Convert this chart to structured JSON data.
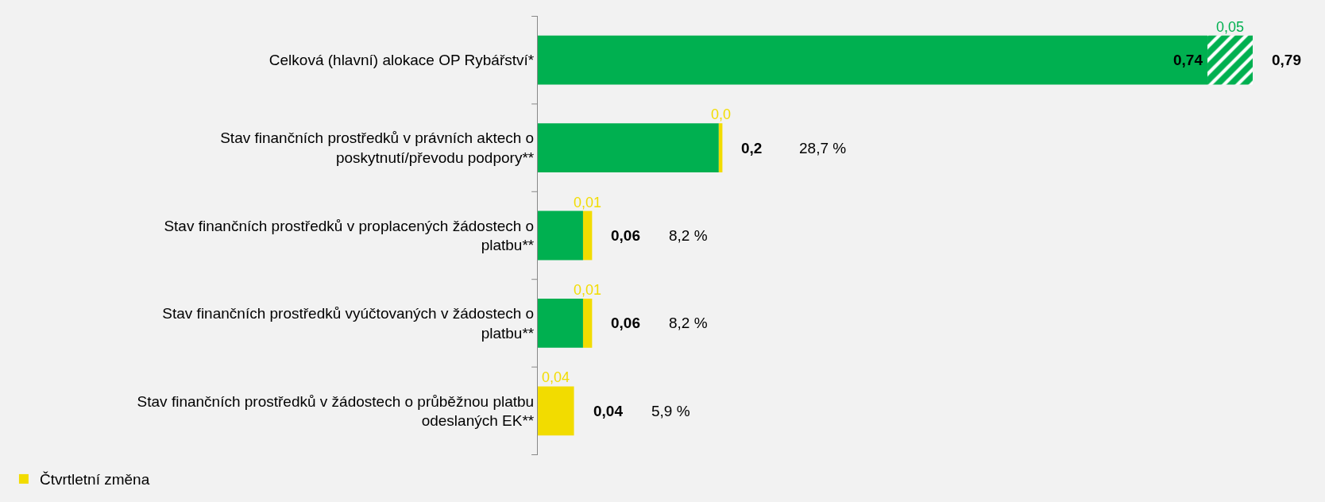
{
  "chart_data": {
    "type": "bar",
    "orientation": "horizontal",
    "stacked": true,
    "legend": "bottom left",
    "grid": false,
    "tick_labels": "y",
    "categories": [
      "Celková (hlavní) alokace OP Rybářství*",
      "Stav finančních prostředků v právních aktech o poskytnutí/převodu podpory**",
      "Stav finančních prostředků v proplacených žádostech o platbu**",
      "Stav finančních prostředků vyúčtovaných v žádostech o platbu**",
      "Stav finančních prostředků v žádostech o průběžnou platbu odeslaných EK**"
    ],
    "series": [
      {
        "color": "#00b050",
        "values": [
          0.74,
          0.2,
          0.05,
          0.05,
          null
        ],
        "value_labels": [
          "0,74",
          null,
          null,
          null,
          null
        ]
      },
      {
        "color": "#00b050",
        "values": [
          0.05,
          null,
          null,
          null,
          null
        ],
        "value_labels": [
          "0,05",
          null,
          null,
          null,
          null
        ]
      },
      {
        "name": "Čtvrtletní změna",
        "color": "#f2dc00",
        "values": [
          null,
          0.004,
          0.01,
          0.01,
          0.04
        ],
        "value_labels": [
          null,
          "0,0",
          "0,01",
          "0,01",
          "0,04"
        ]
      }
    ],
    "totals": [
      "0,79",
      "0,2",
      "0,06",
      "0,06",
      "0,04"
    ],
    "annotations": [
      "28,7 %",
      "8,2 %",
      "8,2 %",
      "5,9 %"
    ]
  }
}
